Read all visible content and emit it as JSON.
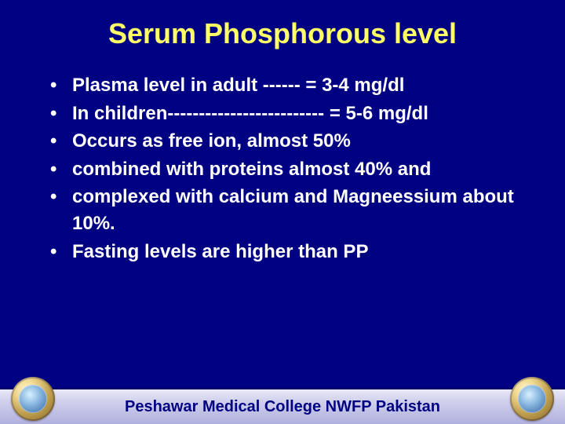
{
  "slide": {
    "title": "Serum Phosphorous level",
    "bullets": [
      "Plasma level in adult  ------    =        3-4  mg/dl",
      "In children------------------------- =       5-6 mg/dl",
      "Occurs as free ion,  almost 50%",
      "combined with proteins almost 40% and",
      "complexed with calcium and Magneessium about 10%.",
      "Fasting levels are higher than PP"
    ],
    "footer": "Peshawar Medical College NWFP Pakistan"
  },
  "colors": {
    "background": "#000082",
    "title_color": "#ffff66",
    "body_text": "#ffffff",
    "footer_text": "#000082",
    "footer_bar_top": "#e8e8f8",
    "footer_bar_bottom": "#b0b0de"
  },
  "typography": {
    "title_fontsize": 36,
    "body_fontsize": 24,
    "footer_fontsize": 20
  }
}
